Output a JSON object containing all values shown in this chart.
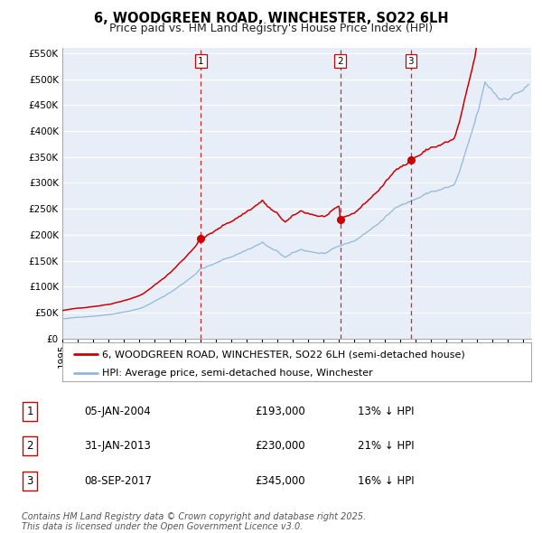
{
  "title": "6, WOODGREEN ROAD, WINCHESTER, SO22 6LH",
  "subtitle": "Price paid vs. HM Land Registry's House Price Index (HPI)",
  "ylim": [
    0,
    560000
  ],
  "yticks": [
    0,
    50000,
    100000,
    150000,
    200000,
    250000,
    300000,
    350000,
    400000,
    450000,
    500000,
    550000
  ],
  "xlim_start": 1995.0,
  "xlim_end": 2025.5,
  "background_color": "#ffffff",
  "chart_bg_color": "#e8eef8",
  "grid_color": "#ffffff",
  "red_line_color": "#cc0000",
  "blue_line_color": "#90b8d8",
  "vline_color": "#cc0000",
  "sale_points": [
    {
      "year": 2004.02,
      "price": 193000,
      "label": "1"
    },
    {
      "year": 2013.08,
      "price": 230000,
      "label": "2"
    },
    {
      "year": 2017.67,
      "price": 345000,
      "label": "3"
    }
  ],
  "legend_red_label": "6, WOODGREEN ROAD, WINCHESTER, SO22 6LH (semi-detached house)",
  "legend_blue_label": "HPI: Average price, semi-detached house, Winchester",
  "table_rows": [
    {
      "num": "1",
      "date": "05-JAN-2004",
      "price": "£193,000",
      "pct": "13% ↓ HPI"
    },
    {
      "num": "2",
      "date": "31-JAN-2013",
      "price": "£230,000",
      "pct": "21% ↓ HPI"
    },
    {
      "num": "3",
      "date": "08-SEP-2017",
      "price": "£345,000",
      "pct": "16% ↓ HPI"
    }
  ],
  "footer": "Contains HM Land Registry data © Crown copyright and database right 2025.\nThis data is licensed under the Open Government Licence v3.0.",
  "title_fontsize": 10.5,
  "subtitle_fontsize": 9,
  "tick_fontsize": 7.5,
  "legend_fontsize": 8,
  "table_fontsize": 8.5,
  "footer_fontsize": 7
}
